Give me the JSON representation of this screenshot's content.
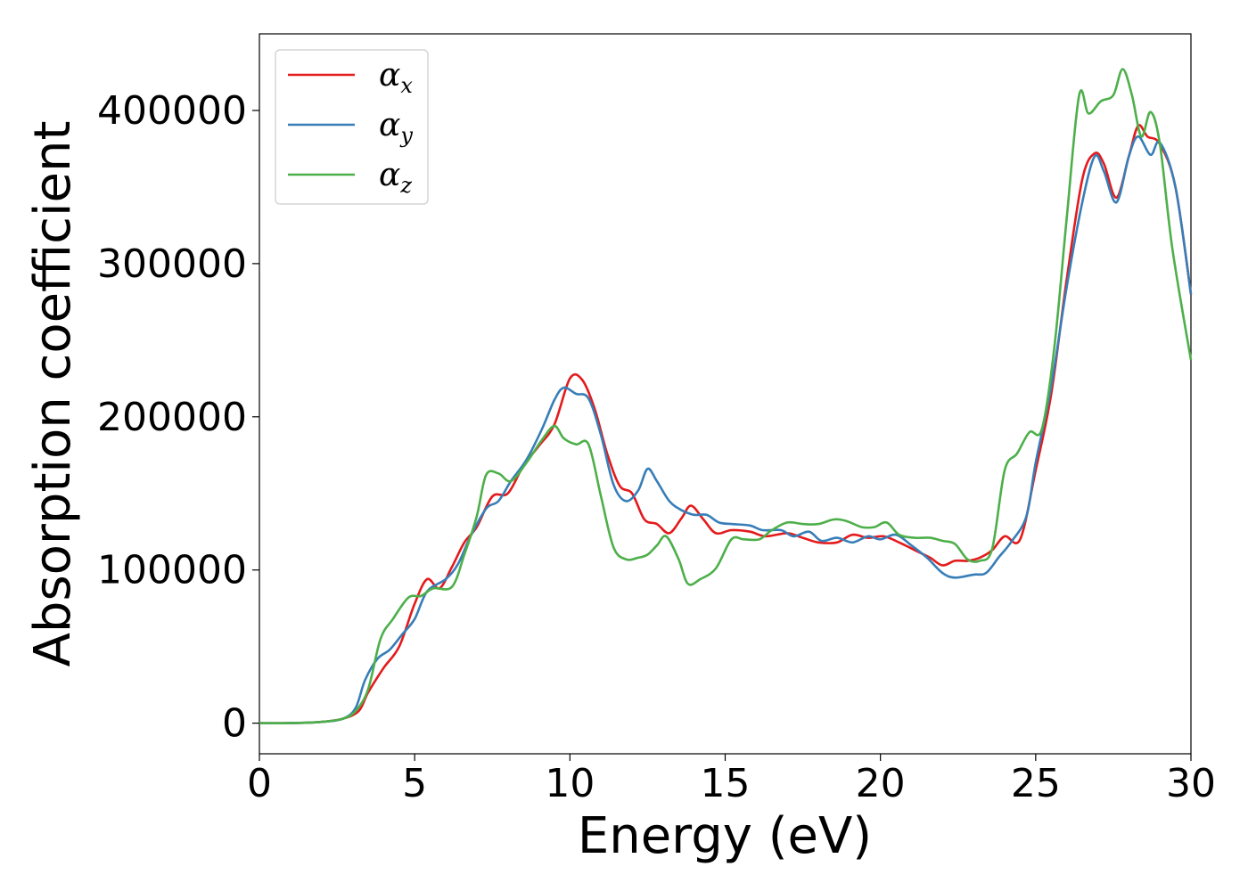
{
  "chart_data": {
    "type": "line",
    "title": "",
    "xlabel": "Energy (eV)",
    "ylabel": "Absorption coefficient",
    "xlim": [
      0,
      30
    ],
    "ylim": [
      -20000,
      450000
    ],
    "xticks": [
      0,
      5,
      10,
      15,
      20,
      25,
      30
    ],
    "xtick_labels": [
      "0",
      "5",
      "10",
      "15",
      "20",
      "25",
      "30"
    ],
    "yticks": [
      0,
      100000,
      200000,
      300000,
      400000
    ],
    "ytick_labels": [
      "0",
      "100000",
      "200000",
      "300000",
      "400000"
    ],
    "grid": false,
    "legend_position": "top-left",
    "series": [
      {
        "name": "αx",
        "legend_base": "α",
        "legend_sub": "x",
        "color": "#e41a1c",
        "points": [
          [
            0,
            0
          ],
          [
            1,
            0
          ],
          [
            2,
            800
          ],
          [
            2.7,
            3000
          ],
          [
            3.2,
            8000
          ],
          [
            3.5,
            20000
          ],
          [
            4,
            36000
          ],
          [
            4.5,
            50000
          ],
          [
            5,
            78000
          ],
          [
            5.4,
            94000
          ],
          [
            5.8,
            88000
          ],
          [
            6.2,
            102000
          ],
          [
            6.6,
            118000
          ],
          [
            7,
            128000
          ],
          [
            7.5,
            148000
          ],
          [
            8,
            150000
          ],
          [
            8.5,
            168000
          ],
          [
            9,
            181000
          ],
          [
            9.5,
            195000
          ],
          [
            10,
            225000
          ],
          [
            10.4,
            224000
          ],
          [
            10.8,
            205000
          ],
          [
            11.2,
            176000
          ],
          [
            11.6,
            155000
          ],
          [
            12,
            150000
          ],
          [
            12.4,
            133000
          ],
          [
            12.8,
            130000
          ],
          [
            13.2,
            124000
          ],
          [
            13.6,
            134000
          ],
          [
            13.9,
            142000
          ],
          [
            14.3,
            133000
          ],
          [
            14.7,
            124000
          ],
          [
            15.2,
            126000
          ],
          [
            15.8,
            125000
          ],
          [
            16.3,
            122000
          ],
          [
            17,
            124000
          ],
          [
            17.5,
            121000
          ],
          [
            18,
            118000
          ],
          [
            18.6,
            118000
          ],
          [
            19.1,
            123000
          ],
          [
            19.6,
            121000
          ],
          [
            20.1,
            122000
          ],
          [
            20.6,
            118000
          ],
          [
            21.2,
            112000
          ],
          [
            21.6,
            108000
          ],
          [
            22,
            103000
          ],
          [
            22.4,
            106000
          ],
          [
            22.8,
            106000
          ],
          [
            23.2,
            108000
          ],
          [
            23.6,
            113000
          ],
          [
            24,
            122000
          ],
          [
            24.5,
            120000
          ],
          [
            25,
            165000
          ],
          [
            25.5,
            215000
          ],
          [
            26,
            290000
          ],
          [
            26.5,
            355000
          ],
          [
            26.9,
            372000
          ],
          [
            27.2,
            365000
          ],
          [
            27.6,
            343000
          ],
          [
            28,
            370000
          ],
          [
            28.3,
            390000
          ],
          [
            28.6,
            383000
          ],
          [
            29,
            378000
          ],
          [
            29.5,
            350000
          ],
          [
            30,
            280000
          ]
        ]
      },
      {
        "name": "αy",
        "legend_base": "α",
        "legend_sub": "y",
        "color": "#377eb8",
        "points": [
          [
            0,
            0
          ],
          [
            1,
            0
          ],
          [
            2,
            800
          ],
          [
            2.7,
            3000
          ],
          [
            3.1,
            10000
          ],
          [
            3.4,
            28000
          ],
          [
            3.8,
            42000
          ],
          [
            4.2,
            48000
          ],
          [
            4.6,
            58000
          ],
          [
            5,
            68000
          ],
          [
            5.4,
            86000
          ],
          [
            6,
            94000
          ],
          [
            6.4,
            104000
          ],
          [
            6.8,
            122000
          ],
          [
            7.3,
            140000
          ],
          [
            7.7,
            145000
          ],
          [
            8.1,
            158000
          ],
          [
            8.6,
            172000
          ],
          [
            9.1,
            192000
          ],
          [
            9.5,
            211000
          ],
          [
            9.8,
            219000
          ],
          [
            10.2,
            215000
          ],
          [
            10.6,
            212000
          ],
          [
            11,
            188000
          ],
          [
            11.4,
            156000
          ],
          [
            11.8,
            145000
          ],
          [
            12.2,
            152000
          ],
          [
            12.5,
            166000
          ],
          [
            12.8,
            158000
          ],
          [
            13.2,
            145000
          ],
          [
            13.6,
            139000
          ],
          [
            14,
            136000
          ],
          [
            14.4,
            136000
          ],
          [
            14.8,
            131000
          ],
          [
            15.2,
            130000
          ],
          [
            15.8,
            129000
          ],
          [
            16.2,
            126000
          ],
          [
            16.8,
            126000
          ],
          [
            17.2,
            122000
          ],
          [
            17.7,
            125000
          ],
          [
            18.1,
            119000
          ],
          [
            18.6,
            121000
          ],
          [
            19.1,
            118000
          ],
          [
            19.6,
            122000
          ],
          [
            20,
            120000
          ],
          [
            20.5,
            123000
          ],
          [
            21,
            116000
          ],
          [
            21.5,
            108000
          ],
          [
            22,
            98000
          ],
          [
            22.4,
            95000
          ],
          [
            23,
            97000
          ],
          [
            23.4,
            98000
          ],
          [
            23.8,
            108000
          ],
          [
            24.2,
            118000
          ],
          [
            24.7,
            135000
          ],
          [
            25,
            170000
          ],
          [
            25.5,
            220000
          ],
          [
            26,
            285000
          ],
          [
            26.5,
            340000
          ],
          [
            26.9,
            370000
          ],
          [
            27.2,
            360000
          ],
          [
            27.6,
            340000
          ],
          [
            28,
            370000
          ],
          [
            28.3,
            383000
          ],
          [
            28.7,
            371000
          ],
          [
            29,
            379000
          ],
          [
            29.5,
            350000
          ],
          [
            30,
            280000
          ]
        ]
      },
      {
        "name": "αz",
        "legend_base": "α",
        "legend_sub": "z",
        "color": "#4daf4a",
        "points": [
          [
            0,
            0
          ],
          [
            1,
            0
          ],
          [
            2,
            800
          ],
          [
            2.7,
            3000
          ],
          [
            3.1,
            8000
          ],
          [
            3.5,
            22000
          ],
          [
            3.9,
            55000
          ],
          [
            4.3,
            68000
          ],
          [
            4.8,
            82000
          ],
          [
            5.2,
            83000
          ],
          [
            5.6,
            88000
          ],
          [
            6.2,
            89000
          ],
          [
            6.6,
            110000
          ],
          [
            7,
            135000
          ],
          [
            7.3,
            162000
          ],
          [
            7.7,
            163000
          ],
          [
            8.1,
            158000
          ],
          [
            8.6,
            170000
          ],
          [
            9.1,
            185000
          ],
          [
            9.5,
            194000
          ],
          [
            9.8,
            186000
          ],
          [
            10.2,
            182000
          ],
          [
            10.6,
            182000
          ],
          [
            11,
            148000
          ],
          [
            11.4,
            115000
          ],
          [
            11.8,
            107000
          ],
          [
            12.2,
            108000
          ],
          [
            12.5,
            110000
          ],
          [
            12.8,
            116000
          ],
          [
            13.1,
            122000
          ],
          [
            13.5,
            107000
          ],
          [
            13.8,
            91000
          ],
          [
            14.2,
            94000
          ],
          [
            14.7,
            101000
          ],
          [
            15.2,
            120000
          ],
          [
            15.6,
            120000
          ],
          [
            16.1,
            120000
          ],
          [
            16.5,
            126000
          ],
          [
            17,
            131000
          ],
          [
            17.5,
            130000
          ],
          [
            18,
            130000
          ],
          [
            18.5,
            133000
          ],
          [
            18.9,
            132000
          ],
          [
            19.4,
            128000
          ],
          [
            19.8,
            128000
          ],
          [
            20.2,
            131000
          ],
          [
            20.6,
            123000
          ],
          [
            21.1,
            121000
          ],
          [
            21.6,
            121000
          ],
          [
            22,
            119000
          ],
          [
            22.4,
            117000
          ],
          [
            22.8,
            107000
          ],
          [
            23.2,
            106000
          ],
          [
            23.6,
            114000
          ],
          [
            24,
            165000
          ],
          [
            24.4,
            176000
          ],
          [
            24.8,
            190000
          ],
          [
            25.2,
            192000
          ],
          [
            25.6,
            245000
          ],
          [
            26,
            330000
          ],
          [
            26.4,
            410000
          ],
          [
            26.7,
            398000
          ],
          [
            27.1,
            406000
          ],
          [
            27.5,
            410000
          ],
          [
            27.8,
            427000
          ],
          [
            28.1,
            410000
          ],
          [
            28.4,
            383000
          ],
          [
            28.7,
            399000
          ],
          [
            29,
            378000
          ],
          [
            29.4,
            310000
          ],
          [
            30,
            237000
          ]
        ]
      }
    ]
  }
}
